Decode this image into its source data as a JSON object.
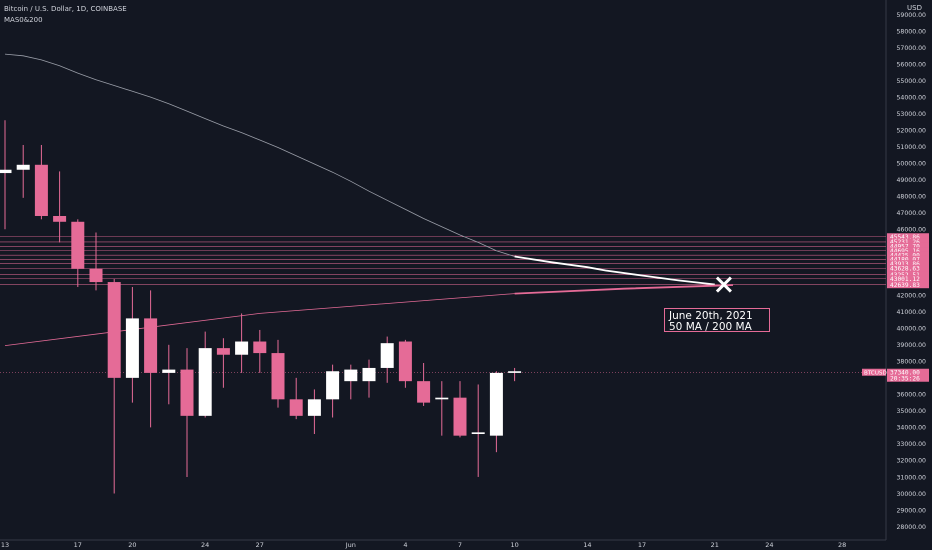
{
  "header": {
    "title": "Bitcoin / U.S. Dollar, 1D, COINBASE",
    "indicator": "MAS0&200",
    "currency": "USD"
  },
  "colors": {
    "background": "#131722",
    "bull_body": "#ffffff",
    "bear_body": "#e56b97",
    "wick": "#e56b97",
    "ma200": "#9a9ea8",
    "ma50_future": "#ffffff",
    "ma200_future": "#e56b97",
    "level_line": "#e56b97",
    "axis_text": "#d1d4dc"
  },
  "annotation": {
    "line1": "June 20th, 2021",
    "line2": "50 MA / 200 MA"
  },
  "chart_data": {
    "type": "candlestick",
    "title": "Bitcoin / U.S. Dollar, 1D, COINBASE",
    "ylim": [
      27500,
      59600
    ],
    "y_ticks": [
      28000,
      29000,
      30000,
      31000,
      32000,
      33000,
      34000,
      35000,
      36000,
      37000,
      38000,
      39000,
      40000,
      41000,
      42000,
      43000,
      44000,
      45000,
      46000,
      47000,
      48000,
      49000,
      50000,
      51000,
      52000,
      53000,
      54000,
      55000,
      56000,
      57000,
      58000,
      59000
    ],
    "y_tick_labels": [
      "28000.00",
      "29000.00",
      "30000.00",
      "31000.00",
      "32000.00",
      "33000.00",
      "34000.00",
      "35000.00",
      "36000.00",
      "37000.00",
      "38000.00",
      "39000.00",
      "40000.00",
      "41000.00",
      "42000.00",
      "43000.00",
      "44000.00",
      "45000.00",
      "46000.00",
      "47000.00",
      "48000.00",
      "49000.00",
      "50000.00",
      "51000.00",
      "52000.00",
      "53000.00",
      "54000.00",
      "55000.00",
      "56000.00",
      "57000.00",
      "58000.00",
      "59000.00"
    ],
    "x_ticks": [
      {
        "day": 0,
        "label": "13"
      },
      {
        "day": 4,
        "label": "17"
      },
      {
        "day": 7,
        "label": "20"
      },
      {
        "day": 11,
        "label": "24"
      },
      {
        "day": 14,
        "label": "27"
      },
      {
        "day": 19,
        "label": "Jun"
      },
      {
        "day": 22,
        "label": "4"
      },
      {
        "day": 25,
        "label": "7"
      },
      {
        "day": 28,
        "label": "10"
      },
      {
        "day": 32,
        "label": "14"
      },
      {
        "day": 35,
        "label": "17"
      },
      {
        "day": 39,
        "label": "21"
      },
      {
        "day": 42,
        "label": "24"
      },
      {
        "day": 46,
        "label": "28"
      }
    ],
    "candles": [
      {
        "day": 0,
        "o": 49400,
        "h": 52600,
        "l": 46000,
        "c": 49600
      },
      {
        "day": 1,
        "o": 49600,
        "h": 51100,
        "l": 47900,
        "c": 49900
      },
      {
        "day": 2,
        "o": 49900,
        "h": 51100,
        "l": 46600,
        "c": 46800
      },
      {
        "day": 3,
        "o": 46800,
        "h": 49500,
        "l": 45200,
        "c": 46450
      },
      {
        "day": 4,
        "o": 46450,
        "h": 46600,
        "l": 42500,
        "c": 43600
      },
      {
        "day": 5,
        "o": 43600,
        "h": 45800,
        "l": 42300,
        "c": 42800
      },
      {
        "day": 6,
        "o": 42800,
        "h": 43000,
        "l": 30000,
        "c": 37000
      },
      {
        "day": 7,
        "o": 37000,
        "h": 42500,
        "l": 35500,
        "c": 40600
      },
      {
        "day": 8,
        "o": 40600,
        "h": 42300,
        "l": 34000,
        "c": 37300
      },
      {
        "day": 9,
        "o": 37300,
        "h": 39000,
        "l": 35400,
        "c": 37500
      },
      {
        "day": 10,
        "o": 37500,
        "h": 38800,
        "l": 31000,
        "c": 34700
      },
      {
        "day": 11,
        "o": 34700,
        "h": 39800,
        "l": 34600,
        "c": 38800
      },
      {
        "day": 12,
        "o": 38800,
        "h": 39400,
        "l": 36400,
        "c": 38400
      },
      {
        "day": 13,
        "o": 38400,
        "h": 40900,
        "l": 37300,
        "c": 39200
      },
      {
        "day": 14,
        "o": 39200,
        "h": 39900,
        "l": 37300,
        "c": 38500
      },
      {
        "day": 15,
        "o": 38500,
        "h": 39300,
        "l": 35200,
        "c": 35700
      },
      {
        "day": 16,
        "o": 35700,
        "h": 37000,
        "l": 34500,
        "c": 34700
      },
      {
        "day": 17,
        "o": 34700,
        "h": 36300,
        "l": 33600,
        "c": 35700
      },
      {
        "day": 18,
        "o": 35700,
        "h": 37800,
        "l": 34600,
        "c": 37400
      },
      {
        "day": 19,
        "o": 36800,
        "h": 37800,
        "l": 35700,
        "c": 37500
      },
      {
        "day": 20,
        "o": 36800,
        "h": 38100,
        "l": 35800,
        "c": 37600
      },
      {
        "day": 21,
        "o": 37600,
        "h": 39500,
        "l": 36700,
        "c": 39100
      },
      {
        "day": 22,
        "o": 39200,
        "h": 39300,
        "l": 36400,
        "c": 36800
      },
      {
        "day": 23,
        "o": 36800,
        "h": 37900,
        "l": 35300,
        "c": 35500
      },
      {
        "day": 24,
        "o": 35700,
        "h": 36800,
        "l": 33500,
        "c": 35800
      },
      {
        "day": 25,
        "o": 35800,
        "h": 36800,
        "l": 33400,
        "c": 33500
      },
      {
        "day": 26,
        "o": 33600,
        "h": 36600,
        "l": 31000,
        "c": 33700
      },
      {
        "day": 27,
        "o": 33500,
        "h": 37400,
        "l": 32500,
        "c": 37300
      },
      {
        "day": 28,
        "o": 37300,
        "h": 37600,
        "l": 36800,
        "c": 37400
      }
    ],
    "ma200_line": [
      {
        "day": 0,
        "v": 56600
      },
      {
        "day": 1,
        "v": 56500
      },
      {
        "day": 2,
        "v": 56250
      },
      {
        "day": 3,
        "v": 55900
      },
      {
        "day": 4,
        "v": 55450
      },
      {
        "day": 5,
        "v": 55050
      },
      {
        "day": 6,
        "v": 54700
      },
      {
        "day": 7,
        "v": 54350
      },
      {
        "day": 8,
        "v": 54000
      },
      {
        "day": 9,
        "v": 53600
      },
      {
        "day": 10,
        "v": 53150
      },
      {
        "day": 11,
        "v": 52700
      },
      {
        "day": 12,
        "v": 52250
      },
      {
        "day": 13,
        "v": 51850
      },
      {
        "day": 14,
        "v": 51400
      },
      {
        "day": 15,
        "v": 50950
      },
      {
        "day": 16,
        "v": 50450
      },
      {
        "day": 17,
        "v": 49950
      },
      {
        "day": 18,
        "v": 49450
      },
      {
        "day": 19,
        "v": 48900
      },
      {
        "day": 20,
        "v": 48300
      },
      {
        "day": 21,
        "v": 47750
      },
      {
        "day": 22,
        "v": 47200
      },
      {
        "day": 23,
        "v": 46650
      },
      {
        "day": 24,
        "v": 46150
      },
      {
        "day": 25,
        "v": 45650
      },
      {
        "day": 26,
        "v": 45200
      },
      {
        "day": 27,
        "v": 44700
      },
      {
        "day": 28,
        "v": 44350
      }
    ],
    "ma50_line": [
      {
        "day": 0,
        "v": 38950
      },
      {
        "day": 14,
        "v": 40900
      },
      {
        "day": 28,
        "v": 42100
      }
    ],
    "ma200_projection": [
      {
        "day": 28,
        "v": 44350
      },
      {
        "day": 30,
        "v": 44000
      },
      {
        "day": 32,
        "v": 43700
      },
      {
        "day": 33,
        "v": 43500
      },
      {
        "day": 35,
        "v": 43200
      },
      {
        "day": 37,
        "v": 42900
      },
      {
        "day": 39,
        "v": 42650
      }
    ],
    "ma50_projection": [
      {
        "day": 28,
        "v": 42100
      },
      {
        "day": 34,
        "v": 42400
      },
      {
        "day": 39,
        "v": 42580
      },
      {
        "day": 40,
        "v": 42620
      }
    ],
    "price_levels": [
      {
        "value": 45543.86,
        "label": "45543.86"
      },
      {
        "value": 45231.26,
        "label": "45231.26"
      },
      {
        "value": 44957.7,
        "label": "44957.70"
      },
      {
        "value": 44695.16,
        "label": "44695.16"
      },
      {
        "value": 44425.0,
        "label": "44425.00"
      },
      {
        "value": 44180.07,
        "label": "44180.07"
      },
      {
        "value": 43913.86,
        "label": "43913.86"
      },
      {
        "value": 43628.63,
        "label": "43628.63"
      },
      {
        "value": 43252.51,
        "label": "43252.51"
      },
      {
        "value": 43001.12,
        "label": "43001.12"
      },
      {
        "value": 42639.83,
        "label": "42639.83"
      }
    ],
    "current_price": {
      "value": 37340.0,
      "label": "37340.00",
      "symbol": "BTCUSD",
      "countdown": "20:35:26"
    },
    "cross_marker": {
      "day": 39.5,
      "value": 42650
    }
  }
}
